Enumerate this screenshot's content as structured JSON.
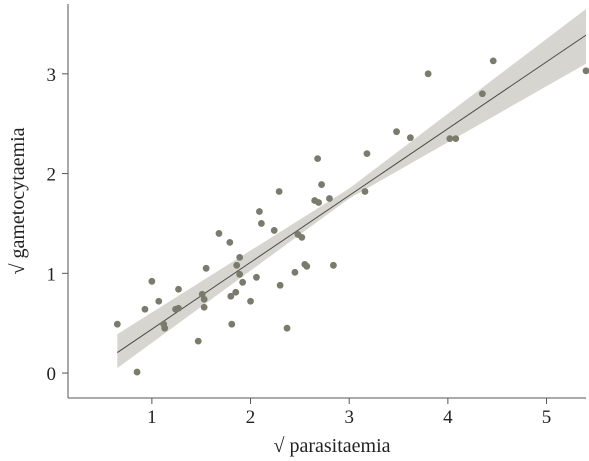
{
  "chart_data": {
    "type": "scatter",
    "title": "",
    "xlabel": "√ parasitaemia",
    "ylabel": "√ gametocytaemia",
    "xlim": [
      0.15,
      5.4
    ],
    "ylim": [
      -0.25,
      3.7
    ],
    "xticks": [
      1,
      2,
      3,
      4,
      5
    ],
    "yticks": [
      0,
      1,
      2,
      3
    ],
    "grid": false,
    "legend": "none",
    "colors": {
      "points": "#7a7b6c",
      "band": "#d6d5d0",
      "line": "#4a4a48",
      "axis": "#555555"
    },
    "regression": {
      "slope": 0.67,
      "intercept": -0.23,
      "x_range": [
        0.65,
        5.4
      ],
      "ci_lower": [
        [
          0.65,
          0.05
        ],
        [
          3.0,
          1.75
        ],
        [
          5.4,
          3.1
        ]
      ],
      "ci_upper": [
        [
          0.65,
          0.39
        ],
        [
          3.0,
          1.85
        ],
        [
          5.4,
          3.65
        ]
      ]
    },
    "points": [
      {
        "x": 0.65,
        "y": 0.49
      },
      {
        "x": 0.85,
        "y": 0.01
      },
      {
        "x": 0.93,
        "y": 0.64
      },
      {
        "x": 1.0,
        "y": 0.92
      },
      {
        "x": 1.07,
        "y": 0.72
      },
      {
        "x": 1.12,
        "y": 0.49
      },
      {
        "x": 1.13,
        "y": 0.45
      },
      {
        "x": 1.24,
        "y": 0.64
      },
      {
        "x": 1.27,
        "y": 0.65
      },
      {
        "x": 1.27,
        "y": 0.84
      },
      {
        "x": 1.47,
        "y": 0.32
      },
      {
        "x": 1.51,
        "y": 0.79
      },
      {
        "x": 1.53,
        "y": 0.74
      },
      {
        "x": 1.53,
        "y": 0.66
      },
      {
        "x": 1.55,
        "y": 1.05
      },
      {
        "x": 1.68,
        "y": 1.4
      },
      {
        "x": 1.79,
        "y": 1.31
      },
      {
        "x": 1.8,
        "y": 0.77
      },
      {
        "x": 1.81,
        "y": 0.49
      },
      {
        "x": 1.85,
        "y": 0.81
      },
      {
        "x": 1.86,
        "y": 1.08
      },
      {
        "x": 1.89,
        "y": 1.16
      },
      {
        "x": 1.89,
        "y": 0.99
      },
      {
        "x": 1.92,
        "y": 0.91
      },
      {
        "x": 2.0,
        "y": 0.72
      },
      {
        "x": 2.06,
        "y": 0.96
      },
      {
        "x": 2.09,
        "y": 1.62
      },
      {
        "x": 2.11,
        "y": 1.5
      },
      {
        "x": 2.24,
        "y": 1.43
      },
      {
        "x": 2.29,
        "y": 1.82
      },
      {
        "x": 2.3,
        "y": 0.88
      },
      {
        "x": 2.37,
        "y": 0.45
      },
      {
        "x": 2.45,
        "y": 1.01
      },
      {
        "x": 2.48,
        "y": 1.39
      },
      {
        "x": 2.52,
        "y": 1.36
      },
      {
        "x": 2.55,
        "y": 1.09
      },
      {
        "x": 2.57,
        "y": 1.07
      },
      {
        "x": 2.65,
        "y": 1.73
      },
      {
        "x": 2.68,
        "y": 2.15
      },
      {
        "x": 2.69,
        "y": 1.71
      },
      {
        "x": 2.72,
        "y": 1.89
      },
      {
        "x": 2.8,
        "y": 1.75
      },
      {
        "x": 2.84,
        "y": 1.08
      },
      {
        "x": 3.16,
        "y": 1.82
      },
      {
        "x": 3.18,
        "y": 2.2
      },
      {
        "x": 3.48,
        "y": 2.42
      },
      {
        "x": 3.62,
        "y": 2.36
      },
      {
        "x": 3.8,
        "y": 3.0
      },
      {
        "x": 4.02,
        "y": 2.35
      },
      {
        "x": 4.08,
        "y": 2.35
      },
      {
        "x": 4.35,
        "y": 2.8
      },
      {
        "x": 4.46,
        "y": 3.13
      },
      {
        "x": 5.4,
        "y": 3.03
      }
    ]
  }
}
